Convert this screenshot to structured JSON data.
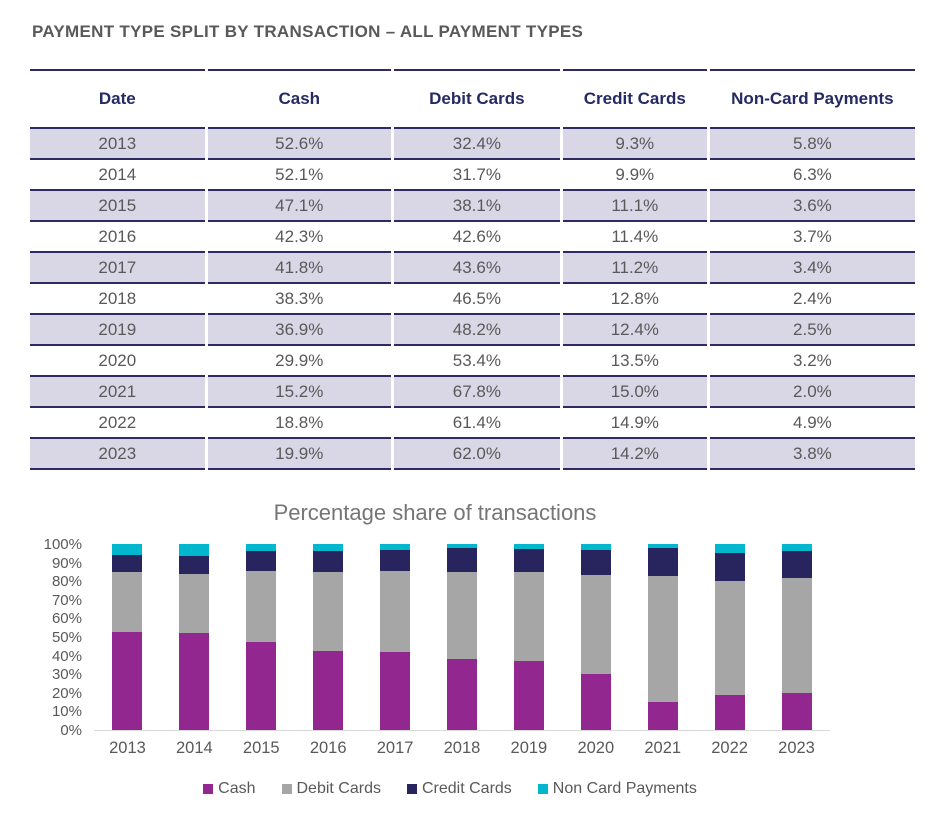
{
  "title": "PAYMENT TYPE SPLIT BY TRANSACTION – ALL PAYMENT TYPES",
  "table": {
    "columns": [
      "Date",
      "Cash",
      "Debit Cards",
      "Credit Cards",
      "Non-Card Payments"
    ],
    "rows": [
      [
        "2013",
        "52.6%",
        "32.4%",
        "9.3%",
        "5.8%"
      ],
      [
        "2014",
        "52.1%",
        "31.7%",
        "9.9%",
        "6.3%"
      ],
      [
        "2015",
        "47.1%",
        "38.1%",
        "11.1%",
        "3.6%"
      ],
      [
        "2016",
        "42.3%",
        "42.6%",
        "11.4%",
        "3.7%"
      ],
      [
        "2017",
        "41.8%",
        "43.6%",
        "11.2%",
        "3.4%"
      ],
      [
        "2018",
        "38.3%",
        "46.5%",
        "12.8%",
        "2.4%"
      ],
      [
        "2019",
        "36.9%",
        "48.2%",
        "12.4%",
        "2.5%"
      ],
      [
        "2020",
        "29.9%",
        "53.4%",
        "13.5%",
        "3.2%"
      ],
      [
        "2021",
        "15.2%",
        "67.8%",
        "15.0%",
        "2.0%"
      ],
      [
        "2022",
        "18.8%",
        "61.4%",
        "14.9%",
        "4.9%"
      ],
      [
        "2023",
        "19.9%",
        "62.0%",
        "14.2%",
        "3.8%"
      ]
    ]
  },
  "chart_data": {
    "type": "bar",
    "stacked": true,
    "title": "Percentage share of transactions",
    "categories": [
      "2013",
      "2014",
      "2015",
      "2016",
      "2017",
      "2018",
      "2019",
      "2020",
      "2021",
      "2022",
      "2023"
    ],
    "series": [
      {
        "name": "Cash",
        "color": "#92278f",
        "values": [
          52.6,
          52.1,
          47.1,
          42.3,
          41.8,
          38.3,
          36.9,
          29.9,
          15.2,
          18.8,
          19.9
        ]
      },
      {
        "name": "Debit Cards",
        "color": "#a6a6a6",
        "values": [
          32.4,
          31.7,
          38.1,
          42.6,
          43.6,
          46.5,
          48.2,
          53.4,
          67.8,
          61.4,
          62.0
        ]
      },
      {
        "name": "Credit Cards",
        "color": "#28245e",
        "values": [
          9.3,
          9.9,
          11.1,
          11.4,
          11.2,
          12.8,
          12.4,
          13.5,
          15.0,
          14.9,
          14.2
        ]
      },
      {
        "name": "Non Card Payments",
        "color": "#00b7ce",
        "values": [
          5.8,
          6.3,
          3.6,
          3.7,
          3.4,
          2.4,
          2.5,
          3.2,
          2.0,
          4.9,
          3.8
        ]
      }
    ],
    "xlabel": "",
    "ylabel": "",
    "ylim": [
      0,
      100
    ],
    "yticks": [
      "0%",
      "10%",
      "20%",
      "30%",
      "40%",
      "50%",
      "60%",
      "70%",
      "80%",
      "90%",
      "100%"
    ],
    "legend_position": "bottom",
    "grid": false
  },
  "colors": {
    "header_text": "#252a63",
    "table_border": "#2e2b63",
    "row_stripe": "#d9d7e6",
    "body_text": "#595959",
    "chart_title_text": "#757575",
    "axis_baseline": "#d9d9d9"
  }
}
